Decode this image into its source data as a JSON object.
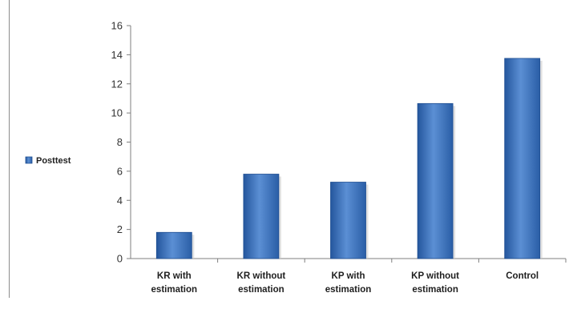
{
  "chart_data": {
    "type": "bar",
    "categories": [
      [
        "KR with",
        "estimation"
      ],
      [
        "KR without",
        "estimation"
      ],
      [
        "KP with",
        "estimation"
      ],
      [
        "KP without",
        "estimation"
      ],
      [
        "Control"
      ]
    ],
    "series": [
      {
        "name": "Posttest",
        "values": [
          1.8,
          5.8,
          5.25,
          10.65,
          13.75
        ]
      }
    ],
    "ylim": [
      0,
      16
    ],
    "yticks": [
      0,
      2,
      4,
      6,
      8,
      10,
      12,
      14,
      16
    ],
    "title": "",
    "xlabel": "",
    "ylabel": "",
    "legend_position": "left",
    "grid": false,
    "colors": {
      "bar": "#3a73c0",
      "bar_dark": "#1f4e91",
      "bar_light": "#6a9ad8",
      "axis": "#7f7f7f"
    }
  }
}
